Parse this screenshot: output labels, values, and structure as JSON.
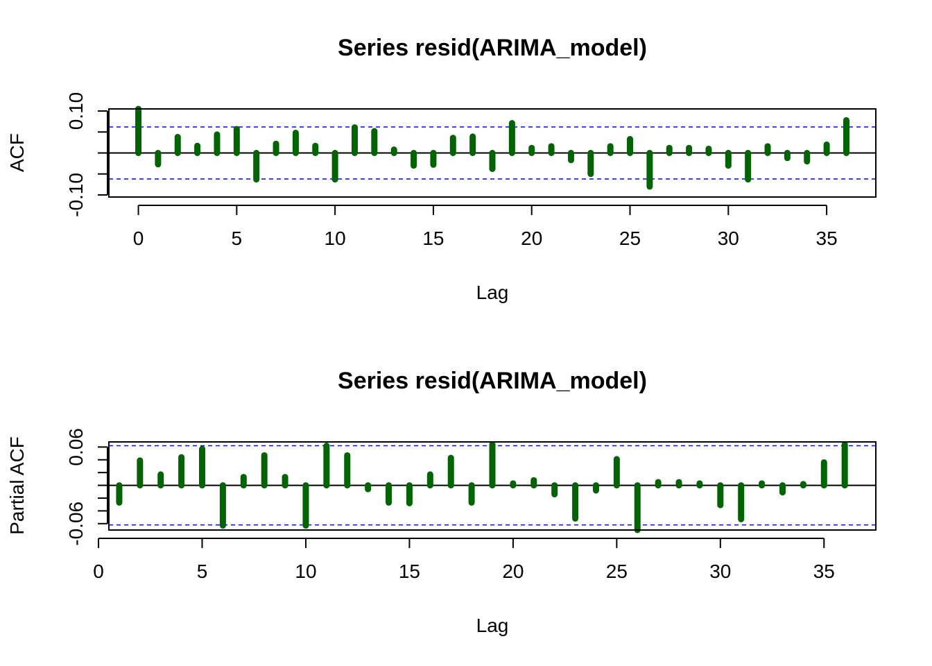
{
  "chart_data": [
    {
      "type": "bar",
      "title": "Series  resid(ARIMA_model)",
      "xlabel": "Lag",
      "ylabel": "ACF",
      "xlim": [
        -1.5,
        37.5
      ],
      "ylim": [
        -0.105,
        0.105
      ],
      "xticks": [
        0,
        5,
        10,
        15,
        20,
        25,
        30,
        35
      ],
      "yticks": [
        "-0.10",
        "0.10"
      ],
      "yticks_minor": [
        -0.1,
        -0.05,
        0,
        0.05,
        0.1
      ],
      "ci": 0.062,
      "bar_color": "#006400",
      "ci_color": "#0000ff",
      "lags": [
        0,
        1,
        2,
        3,
        4,
        5,
        6,
        7,
        8,
        9,
        10,
        11,
        12,
        13,
        14,
        15,
        16,
        17,
        18,
        19,
        20,
        21,
        22,
        23,
        24,
        25,
        26,
        27,
        28,
        29,
        30,
        31,
        32,
        33,
        34,
        35,
        36
      ],
      "values": [
        0.105,
        -0.027,
        0.038,
        0.017,
        0.044,
        0.057,
        -0.063,
        0.022,
        0.048,
        0.017,
        -0.063,
        0.061,
        0.052,
        0.008,
        -0.03,
        -0.028,
        0.036,
        0.039,
        -0.038,
        0.071,
        0.012,
        0.016,
        -0.017,
        -0.05,
        0.016,
        0.033,
        -0.08,
        0.012,
        0.012,
        0.01,
        -0.03,
        -0.063,
        0.016,
        -0.012,
        -0.02,
        0.02,
        0.078
      ]
    },
    {
      "type": "bar",
      "title": "Series  resid(ARIMA_model)",
      "xlabel": "Lag",
      "ylabel": "Partial ACF",
      "xlim": [
        0.5,
        37.5
      ],
      "ylim": [
        -0.07,
        0.068
      ],
      "xticks": [
        0,
        5,
        10,
        15,
        20,
        25,
        30,
        35
      ],
      "yticks": [
        "-0.06",
        "0.06"
      ],
      "yticks_minor": [
        -0.06,
        -0.04,
        -0.02,
        0,
        0.02,
        0.04,
        0.06
      ],
      "ci": 0.062,
      "bar_color": "#006400",
      "ci_color": "#0000ff",
      "lags": [
        1,
        2,
        3,
        4,
        5,
        6,
        7,
        8,
        9,
        10,
        11,
        12,
        13,
        14,
        15,
        16,
        17,
        18,
        19,
        20,
        21,
        22,
        23,
        24,
        25,
        26,
        27,
        28,
        29,
        30,
        31,
        32,
        33,
        34,
        35,
        36
      ],
      "values": [
        -0.027,
        0.039,
        0.017,
        0.044,
        0.057,
        -0.063,
        0.013,
        0.047,
        0.013,
        -0.063,
        0.062,
        0.047,
        -0.006,
        -0.027,
        -0.028,
        0.017,
        0.043,
        -0.027,
        0.064,
        0.003,
        0.008,
        -0.014,
        -0.052,
        -0.008,
        0.041,
        -0.07,
        0.005,
        0.005,
        0.003,
        -0.031,
        -0.053,
        0.003,
        -0.011,
        0.002,
        0.036,
        0.064
      ]
    }
  ]
}
